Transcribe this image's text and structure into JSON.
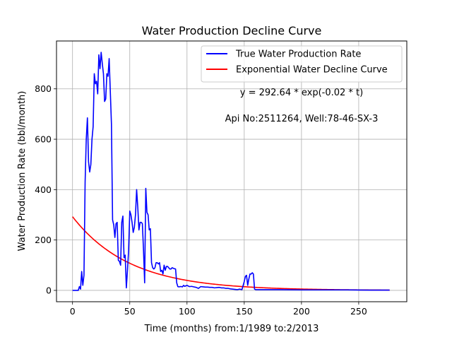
{
  "colors": {
    "true_rate": "#0000ff",
    "decline": "#ff0000",
    "grid": "#b0b0b0",
    "axis": "#000000"
  },
  "chart_data": {
    "type": "line",
    "title": "Water Production Decline Curve",
    "xlabel": "Time (months) from:1/1989 to:2/2013",
    "ylabel": "Water Production Rate (bbl/month)",
    "xlim": [
      -14,
      292
    ],
    "ylim": [
      -45,
      990
    ],
    "xticks": [
      0,
      50,
      100,
      150,
      200,
      250
    ],
    "yticks": [
      0,
      200,
      400,
      600,
      800
    ],
    "grid": true,
    "legend_position": "top-right",
    "annotations": [
      "y = 292.64 * exp(-0.02 * t)",
      "Api No:2511264, Well:78-46-SX-3"
    ],
    "series": [
      {
        "name": "True Water Production Rate",
        "x": [
          0,
          5,
          6,
          7,
          8,
          9,
          10,
          11,
          12,
          13,
          14,
          15,
          16,
          17,
          18,
          19,
          20,
          21,
          22,
          23,
          24,
          25,
          26,
          27,
          28,
          29,
          30,
          31,
          32,
          33,
          34,
          35,
          36,
          37,
          38,
          39,
          40,
          41,
          42,
          43,
          44,
          45,
          46,
          47,
          48,
          49,
          50,
          51,
          52,
          53,
          54,
          55,
          56,
          57,
          58,
          59,
          60,
          61,
          62,
          63,
          64,
          65,
          66,
          67,
          68,
          69,
          70,
          71,
          72,
          73,
          74,
          75,
          76,
          77,
          78,
          79,
          80,
          81,
          82,
          83,
          84,
          85,
          86,
          87,
          88,
          89,
          90,
          91,
          92,
          93,
          94,
          95,
          96,
          97,
          98,
          99,
          100,
          102,
          104,
          106,
          108,
          110,
          112,
          114,
          116,
          118,
          120,
          122,
          124,
          126,
          128,
          130,
          132,
          134,
          136,
          138,
          140,
          142,
          144,
          146,
          148,
          150,
          151,
          152,
          153,
          154,
          155,
          156,
          157,
          158,
          159,
          160,
          161,
          162,
          170,
          180,
          200,
          220,
          240,
          260,
          277
        ],
        "values": [
          0,
          0,
          15,
          5,
          75,
          20,
          60,
          430,
          600,
          685,
          510,
          470,
          500,
          600,
          650,
          860,
          820,
          830,
          780,
          935,
          880,
          945,
          900,
          860,
          750,
          760,
          860,
          850,
          920,
          790,
          660,
          280,
          260,
          210,
          265,
          270,
          120,
          115,
          100,
          270,
          295,
          130,
          140,
          10,
          80,
          160,
          315,
          300,
          270,
          230,
          250,
          300,
          400,
          330,
          240,
          270,
          270,
          265,
          160,
          30,
          405,
          310,
          300,
          240,
          245,
          110,
          90,
          85,
          90,
          110,
          110,
          105,
          110,
          75,
          80,
          65,
          100,
          80,
          95,
          95,
          90,
          85,
          85,
          90,
          88,
          86,
          85,
          30,
          15,
          14,
          15,
          15,
          14,
          20,
          16,
          18,
          20,
          15,
          16,
          14,
          12,
          8,
          15,
          14,
          13,
          13,
          12,
          12,
          10,
          11,
          12,
          10,
          10,
          8,
          8,
          6,
          5,
          4,
          3,
          5,
          3,
          35,
          55,
          60,
          20,
          45,
          65,
          65,
          70,
          65,
          5,
          3,
          3,
          3,
          3,
          3,
          2,
          2,
          2,
          1,
          1
        ],
        "color": "#0000ff"
      },
      {
        "name": "Exponential Water Decline Curve",
        "function": {
          "a": 292.64,
          "b": 0.02,
          "x_start": 0,
          "x_end": 277
        },
        "color": "#ff0000"
      }
    ]
  }
}
